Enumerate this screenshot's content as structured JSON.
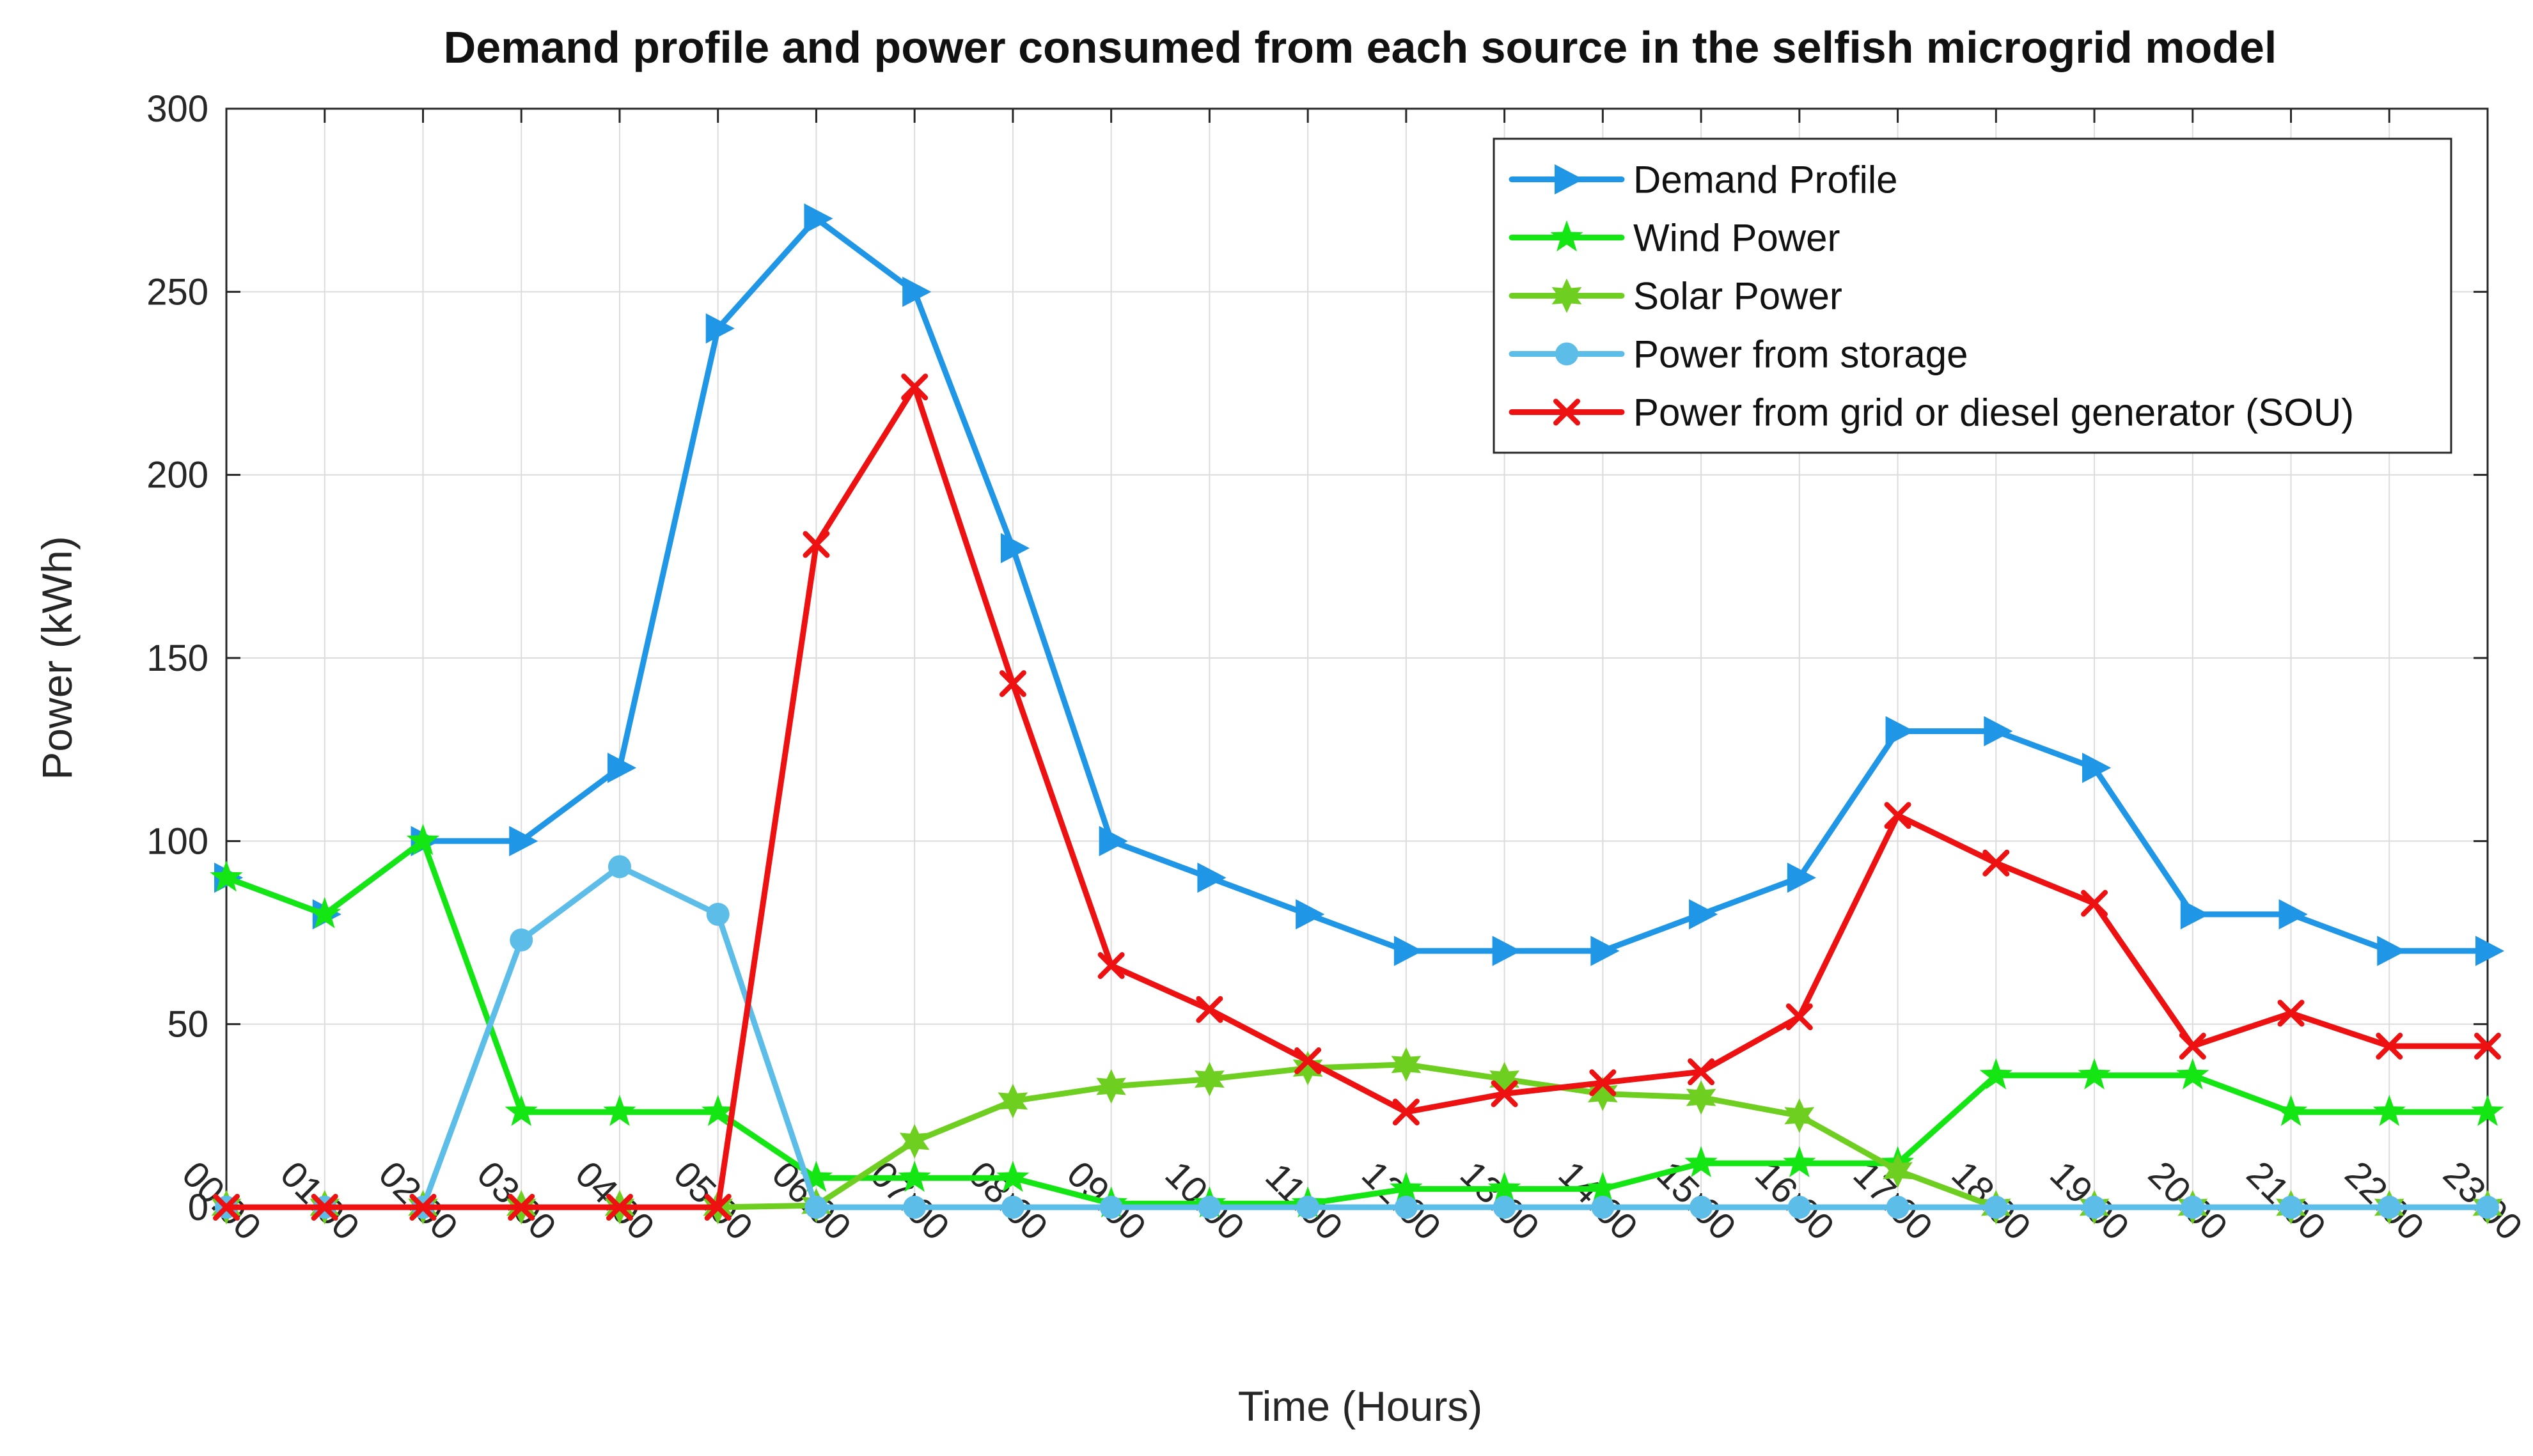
{
  "chart_data": {
    "type": "line",
    "title": "Demand profile and power consumed from each source in the selfish microgrid model",
    "xlabel": "Time (Hours)",
    "ylabel": "Power (kWh)",
    "ylim": [
      0,
      300
    ],
    "yticks": [
      0,
      50,
      100,
      150,
      200,
      250,
      300
    ],
    "grid": true,
    "legend_position": "top-right",
    "categories": [
      "00:00",
      "01:00",
      "02:00",
      "03:00",
      "04:00",
      "05:00",
      "06:00",
      "07:00",
      "08:00",
      "09:00",
      "10:00",
      "11:00",
      "12:00",
      "13:00",
      "14:00",
      "15:00",
      "16:00",
      "17:00",
      "18:00",
      "19:00",
      "20:00",
      "21:00",
      "22:00",
      "23:00"
    ],
    "series": [
      {
        "name": "Demand Profile",
        "color": "#1f96e6",
        "marker": "triangle-right",
        "values": [
          90,
          80,
          100,
          100,
          120,
          240,
          270,
          250,
          180,
          100,
          90,
          80,
          70,
          70,
          70,
          80,
          90,
          130,
          130,
          120,
          80,
          80,
          70,
          70
        ]
      },
      {
        "name": "Wind Power",
        "color": "#14e614",
        "marker": "star",
        "values": [
          90,
          80,
          100,
          26,
          26,
          26,
          8,
          8,
          8,
          1,
          1,
          1,
          5,
          5,
          5,
          12,
          12,
          12,
          36,
          36,
          36,
          26,
          26,
          26
        ]
      },
      {
        "name": "Solar Power",
        "color": "#6fcf20",
        "marker": "hexagram",
        "values": [
          0,
          0,
          0,
          0,
          0,
          0,
          0.5,
          18,
          29,
          33,
          35,
          38,
          39,
          35,
          31,
          30,
          25,
          10,
          0,
          0,
          0,
          0,
          0,
          0
        ]
      },
      {
        "name": "Power from storage",
        "color": "#5bbde8",
        "marker": "circle",
        "values": [
          0,
          0,
          0,
          73,
          93,
          80,
          0,
          0,
          0,
          0,
          0,
          0,
          0,
          0,
          0,
          0,
          0,
          0,
          0,
          0,
          0,
          0,
          0,
          0
        ]
      },
      {
        "name": "Power from grid or diesel generator (SOU)",
        "color": "#ee1111",
        "marker": "x",
        "values": [
          0,
          0,
          0,
          0,
          0,
          0,
          181,
          224,
          143,
          66,
          54,
          40,
          26,
          31,
          34,
          37,
          52,
          107,
          94,
          83,
          44,
          53,
          44,
          44
        ]
      }
    ]
  }
}
